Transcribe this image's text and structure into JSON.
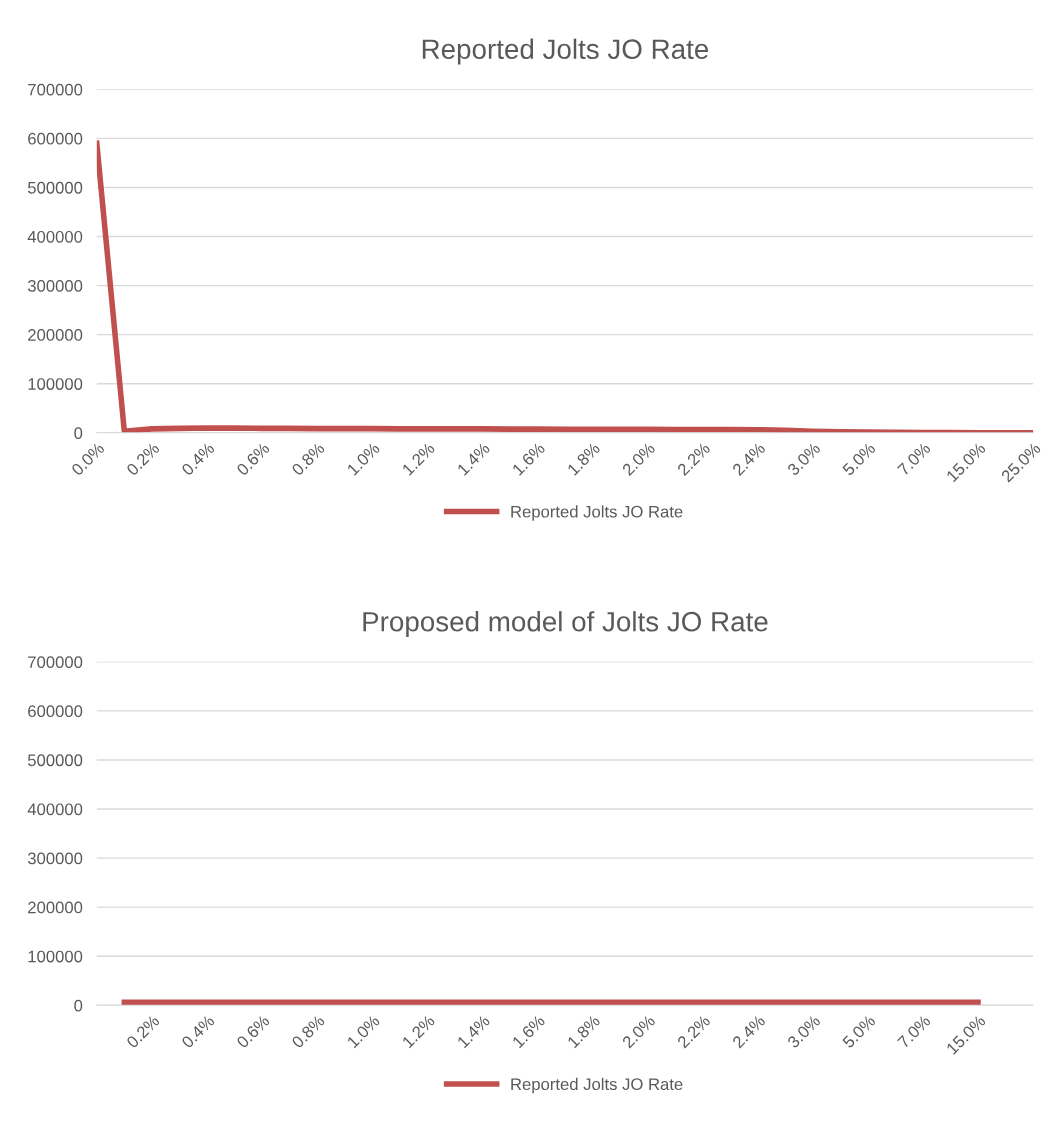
{
  "chart_data": [
    {
      "type": "line",
      "title": "Reported Jolts JO Rate",
      "categories": [
        "0.0%",
        null,
        "0.2%",
        null,
        "0.4%",
        null,
        "0.6%",
        null,
        "0.8%",
        null,
        "1.0%",
        null,
        "1.2%",
        null,
        "1.4%",
        null,
        "1.6%",
        null,
        "1.8%",
        null,
        "2.0%",
        null,
        "2.2%",
        null,
        "2.4%",
        null,
        "3.0%",
        null,
        "5.0%",
        null,
        "7.0%",
        null,
        "15.0%",
        null,
        "25.0%"
      ],
      "series": [
        {
          "name": "Reported Jolts JO Rate",
          "color": "#c0504d",
          "values": [
            590000,
            3000,
            8000,
            9000,
            10000,
            9500,
            9000,
            9000,
            8500,
            8500,
            8500,
            8000,
            8000,
            8000,
            8000,
            7500,
            7500,
            7000,
            7000,
            7000,
            7000,
            6500,
            6500,
            6500,
            6300,
            5000,
            3000,
            2000,
            1500,
            1000,
            800,
            500,
            300,
            200,
            0
          ]
        }
      ],
      "ylim": [
        0,
        700000
      ],
      "yticks": [
        0,
        100000,
        200000,
        300000,
        400000,
        500000,
        600000,
        700000
      ],
      "grid": "y",
      "legend": "bottom",
      "marker": "none",
      "line_style": "solid"
    },
    {
      "type": "line",
      "title": "Proposed model of Jolts JO Rate",
      "categories": [
        null,
        null,
        "0.2%",
        null,
        "0.4%",
        null,
        "0.6%",
        null,
        "0.8%",
        null,
        "1.0%",
        null,
        "1.2%",
        null,
        "1.4%",
        null,
        "1.6%",
        null,
        "1.8%",
        null,
        "2.0%",
        null,
        "2.2%",
        null,
        "2.4%",
        null,
        "3.0%",
        null,
        "5.0%",
        null,
        "7.0%",
        null,
        "15.0%",
        null,
        null
      ],
      "series": [
        {
          "name": "Reported Jolts JO Rate",
          "color": "#c0504d",
          "values": [
            null,
            6000,
            6000,
            6000,
            6000,
            6000,
            6000,
            6000,
            6000,
            6000,
            6000,
            6000,
            6000,
            6000,
            6000,
            6000,
            6000,
            6000,
            6000,
            6000,
            6000,
            6000,
            6000,
            6000,
            6000,
            6000,
            6000,
            6000,
            6000,
            6000,
            6000,
            6000,
            6000,
            null,
            null
          ]
        }
      ],
      "ylim": [
        0,
        700000
      ],
      "yticks": [
        0,
        100000,
        200000,
        300000,
        400000,
        500000,
        600000,
        700000
      ],
      "grid": "y",
      "legend": "bottom",
      "marker": "none",
      "line_style": "solid"
    }
  ]
}
